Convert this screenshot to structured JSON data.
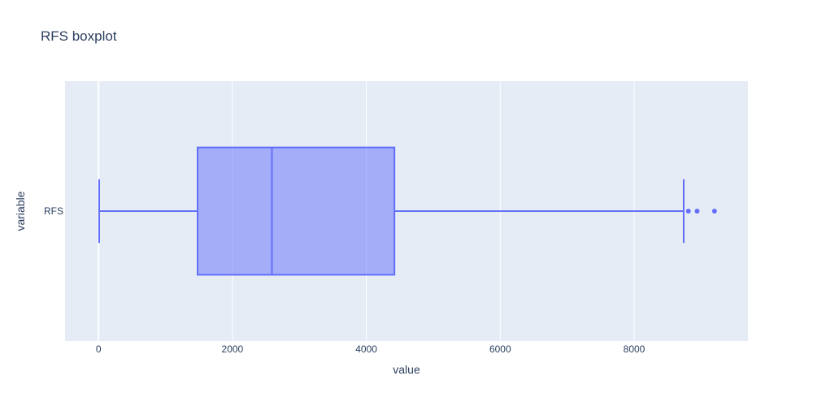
{
  "chart_data": {
    "type": "box",
    "title": "RFS boxplot",
    "xlabel": "value",
    "ylabel": "variable",
    "orientation": "horizontal",
    "xlim": [
      -500,
      9700
    ],
    "x_ticks": [
      0,
      2000,
      4000,
      6000,
      8000
    ],
    "x_tick_labels": [
      "0",
      "2000",
      "4000",
      "6000",
      "8000"
    ],
    "grid": true,
    "series": [
      {
        "name": "RFS",
        "lower_fence": 10,
        "q1": 1480,
        "median": 2590,
        "q3": 4420,
        "upper_fence": 8740,
        "outliers": [
          8810,
          8940,
          9200
        ]
      }
    ]
  },
  "colors": {
    "plot_background": "#e5ecf6",
    "grid": "#ffffff",
    "box_stroke": "#636efa",
    "box_fill": "rgba(99,110,250,0.5)",
    "text": "#2a3f5f"
  }
}
